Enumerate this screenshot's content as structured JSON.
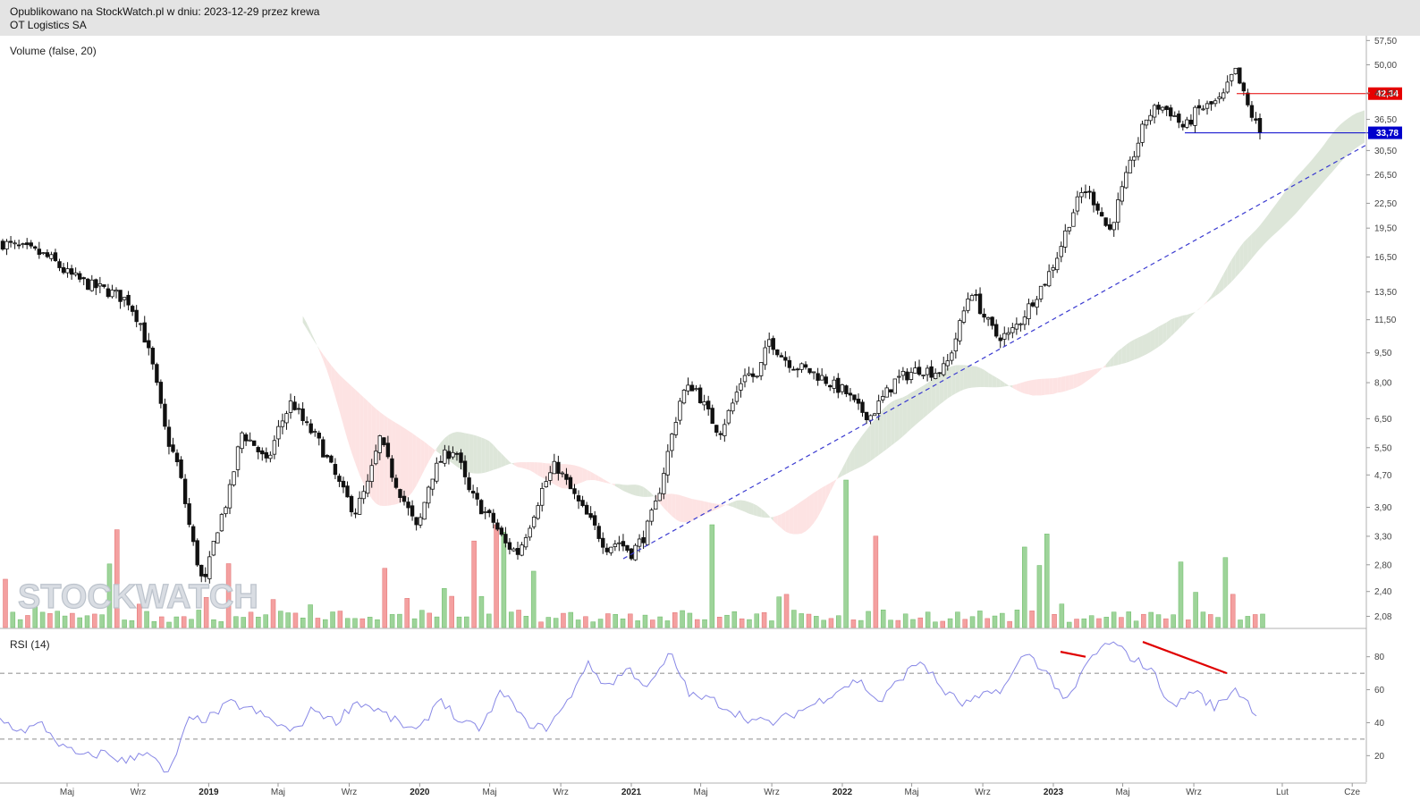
{
  "header": {
    "line1": "Opublikowano na StockWatch.pl w dniu: 2023-12-29 przez krewa",
    "line2": "OT Logistics SA"
  },
  "watermark": "STOCKWATCH",
  "colors": {
    "up": "#9ed49a",
    "down": "#f4a0a0",
    "cloud_bull": "#dde6d9",
    "cloud_bear": "#fde3e3",
    "trendline": "#3a3ad0",
    "rsi": "#8888e6",
    "resistance": "#e60000",
    "support": "#0000cc"
  },
  "chart_data": [
    {
      "type": "candlestick",
      "title": "OT Logistics SA",
      "scale": "log",
      "ylim": [
        1.95,
        58.5
      ],
      "y_ticks": [
        "57,50",
        "50,00",
        "42,50",
        "36,50",
        "30,50",
        "26,50",
        "22,50",
        "19,50",
        "16,50",
        "13,50",
        "11,50",
        "9,50",
        "8,00",
        "6,50",
        "5,50",
        "4,70",
        "3,90",
        "3,30",
        "2,80",
        "2,40",
        "2,08"
      ],
      "x_ticks": [
        {
          "label": "Maj",
          "bold": false
        },
        {
          "label": "Wrz",
          "bold": false
        },
        {
          "label": "2019",
          "bold": true
        },
        {
          "label": "Maj",
          "bold": false
        },
        {
          "label": "Wrz",
          "bold": false
        },
        {
          "label": "2020",
          "bold": true
        },
        {
          "label": "Maj",
          "bold": false
        },
        {
          "label": "Wrz",
          "bold": false
        },
        {
          "label": "2021",
          "bold": true
        },
        {
          "label": "Maj",
          "bold": false
        },
        {
          "label": "Wrz",
          "bold": false
        },
        {
          "label": "2022",
          "bold": true
        },
        {
          "label": "Maj",
          "bold": false
        },
        {
          "label": "Wrz",
          "bold": false
        },
        {
          "label": "2023",
          "bold": true
        },
        {
          "label": "Maj",
          "bold": false
        },
        {
          "label": "Wrz",
          "bold": false
        },
        {
          "label": "Lut",
          "bold": false
        },
        {
          "label": "Cze",
          "bold": false
        }
      ],
      "price_path_date_range": [
        "2018-01-05",
        "2023-12-29"
      ],
      "price_path_approx_closes": [
        17.9,
        17.5,
        17.2,
        16.8,
        16.2,
        15.1,
        14.5,
        14.0,
        13.7,
        13.3,
        12.8,
        11.2,
        8.6,
        5.9,
        4.9,
        3.3,
        2.45,
        3.4,
        4.2,
        6.0,
        5.6,
        5.0,
        6.2,
        7.2,
        6.3,
        5.8,
        5.0,
        4.3,
        3.8,
        4.4,
        5.8,
        4.7,
        4.0,
        3.4,
        4.6,
        5.2,
        5.5,
        4.3,
        3.9,
        3.6,
        3.15,
        3.0,
        3.6,
        4.4,
        5.0,
        4.4,
        3.9,
        3.5,
        3.1,
        3.2,
        3.0,
        3.3,
        4.0,
        5.5,
        7.5,
        7.9,
        6.8,
        6.0,
        7.0,
        8.5,
        8.2,
        10.3,
        9.3,
        8.8,
        8.6,
        8.3,
        7.9,
        7.6,
        6.9,
        6.6,
        7.3,
        8.1,
        8.4,
        8.7,
        8.5,
        8.7,
        10.8,
        13.8,
        11.8,
        10.5,
        10.5,
        11.5,
        13.0,
        14.5,
        17.0,
        21.0,
        24.5,
        22.5,
        19.0,
        24.0,
        30.0,
        37.0,
        39.5,
        38.0,
        34.5,
        38.5,
        39.5,
        41.0,
        48.5,
        39.5,
        33.8
      ],
      "resistance_level": "42,34",
      "support_level": "33,78"
    },
    {
      "type": "bar",
      "title": "Volume (false, 20)",
      "volume_bars_shown": 170,
      "note_values": "relative heights only; no volume axis printed"
    },
    {
      "type": "line",
      "title": "RSI (14)",
      "ylim": [
        5,
        95
      ],
      "y_ticks": [
        80,
        60,
        40,
        20
      ],
      "reference_levels": [
        70,
        30
      ],
      "approx_values": [
        42,
        35,
        39,
        25,
        19,
        22,
        16,
        24,
        7,
        41,
        43,
        52,
        48,
        41,
        34,
        49,
        40,
        53,
        48,
        40,
        34,
        56,
        39,
        37,
        60,
        41,
        36,
        50,
        76,
        62,
        73,
        61,
        82,
        56,
        54,
        47,
        41,
        40,
        46,
        52,
        60,
        66,
        52,
        67,
        78,
        60,
        51,
        56,
        62,
        83,
        70,
        52,
        78,
        89,
        80,
        72,
        49,
        60,
        49,
        61,
        46
      ]
    }
  ]
}
